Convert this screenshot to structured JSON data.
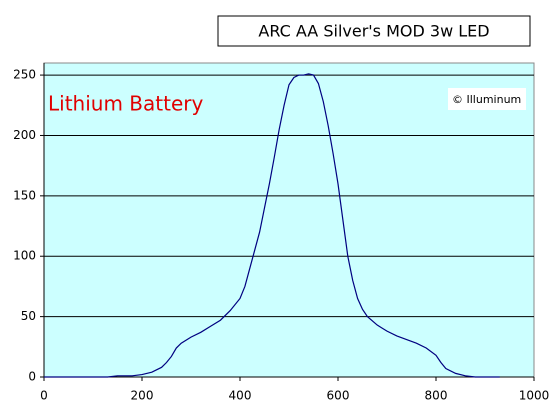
{
  "chart_data": {
    "type": "line",
    "title": "ARC AA Silver's MOD 3w LED",
    "annotations": [
      "Lithium Battery",
      "© Illuminum"
    ],
    "x": [
      0,
      50,
      100,
      130,
      150,
      180,
      200,
      220,
      240,
      250,
      260,
      270,
      280,
      300,
      320,
      340,
      360,
      380,
      400,
      410,
      420,
      430,
      440,
      450,
      460,
      470,
      480,
      490,
      500,
      510,
      520,
      530,
      540,
      550,
      560,
      570,
      580,
      590,
      600,
      610,
      620,
      630,
      640,
      650,
      660,
      680,
      700,
      720,
      740,
      760,
      780,
      800,
      810,
      820,
      840,
      860,
      880,
      930
    ],
    "series": [
      {
        "name": "Lithium Battery",
        "color": "#000080",
        "values": [
          0,
          0,
          0,
          0,
          1,
          1,
          2,
          4,
          8,
          12,
          17,
          24,
          28,
          33,
          37,
          42,
          47,
          55,
          65,
          75,
          90,
          105,
          120,
          140,
          160,
          182,
          205,
          225,
          242,
          248,
          250,
          250,
          251,
          250,
          243,
          228,
          208,
          185,
          160,
          130,
          100,
          80,
          65,
          56,
          50,
          43,
          38,
          34,
          31,
          28,
          24,
          18,
          12,
          7,
          3,
          1,
          0,
          0
        ]
      }
    ],
    "xlim": [
      0,
      1000
    ],
    "xticks": [
      0,
      200,
      400,
      600,
      800,
      1000
    ],
    "ylim": [
      0,
      260
    ],
    "yticks": [
      0,
      50,
      100,
      150,
      200,
      250
    ],
    "grid": true,
    "background": "#ccffff"
  }
}
